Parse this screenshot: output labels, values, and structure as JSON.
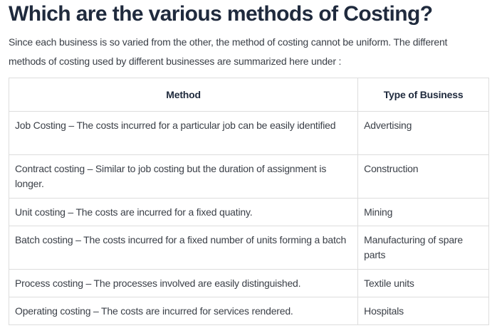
{
  "heading": "Which are the various methods of Costing?",
  "intro": "Since each business is so varied from the other, the method of costing cannot be uniform.  The different methods of costing used by different businesses are summarized here under :",
  "table": {
    "headers": [
      "Method",
      "Type of Business"
    ],
    "rows": [
      {
        "method": "Job Costing – The costs incurred for a particular job can be easily identified",
        "business": "Advertising"
      },
      {
        "method": "Contract costing – Similar to job costing but the duration of assignment is longer.",
        "business": "Construction"
      },
      {
        "method": "Unit costing – The costs are incurred for a fixed quatiny.",
        "business": "Mining"
      },
      {
        "method": "Batch costing – The costs incurred for a fixed number of units forming a batch",
        "business": "Manufacturing of spare parts"
      },
      {
        "method": "Process costing – The processes involved are easily distinguished.",
        "business": "Textile units"
      },
      {
        "method": "Operating costing – The costs are incurred for services rendered.",
        "business": "Hospitals"
      }
    ]
  }
}
